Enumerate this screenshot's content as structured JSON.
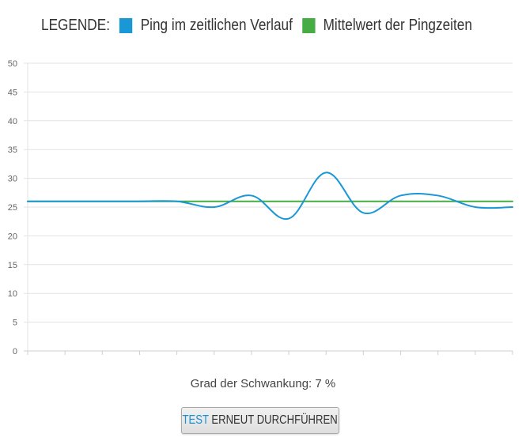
{
  "legend": {
    "title": "LEGENDE:",
    "entries": [
      {
        "label": "Ping im zeitlichen Verlauf",
        "color": "#1a97d5"
      },
      {
        "label": "Mittelwert der Pingzeiten",
        "color": "#45ad43"
      }
    ]
  },
  "chart_data": {
    "type": "line",
    "ylim": [
      0,
      50
    ],
    "yticks": [
      "0",
      "5",
      "10",
      "15",
      "20",
      "25",
      "30",
      "35",
      "40",
      "45",
      "50"
    ],
    "grid": true,
    "legend_position": "top",
    "x_count": 14,
    "series": [
      {
        "name": "Ping im zeitlichen Verlauf",
        "color": "#1a97d5",
        "values": [
          26,
          26,
          26,
          26,
          26,
          25,
          27,
          23,
          31,
          24,
          27,
          27,
          25,
          25
        ]
      },
      {
        "name": "Mittelwert der Pingzeiten",
        "color": "#45ad43",
        "values": [
          26,
          26,
          26,
          26,
          26,
          26,
          26,
          26,
          26,
          26,
          26,
          26,
          26,
          26
        ]
      }
    ]
  },
  "summary": {
    "text": "Grad der Schwankung: 7 %"
  },
  "retry_button": {
    "accent": "TEST",
    "rest": "ERNEUT DURCHFÜHREN"
  }
}
